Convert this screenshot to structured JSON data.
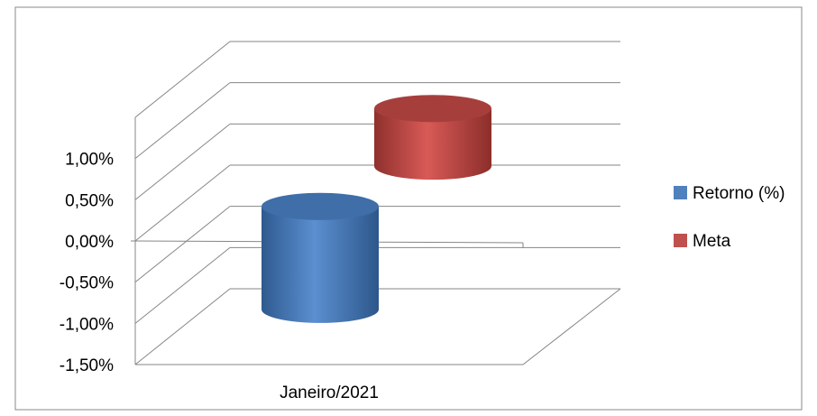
{
  "chart_data": {
    "type": "bar",
    "style": "3d-cylinder",
    "categories": [
      "Janeiro/2021"
    ],
    "series": [
      {
        "name": "Retorno (%)",
        "color": "#4F81BD",
        "range": [
          -1.05,
          0.2
        ]
      },
      {
        "name": "Meta",
        "color": "#C0504D",
        "range": [
          0.25,
          0.95
        ]
      }
    ],
    "y_ticks": [
      "1,00%",
      "0,50%",
      "0,00%",
      "-0,50%",
      "-1,00%",
      "-1,50%"
    ],
    "y_tick_values": [
      1.0,
      0.5,
      0.0,
      -0.5,
      -1.0,
      -1.5
    ],
    "ylim": [
      -1.5,
      1.5
    ],
    "grid": true,
    "legend": "right"
  }
}
